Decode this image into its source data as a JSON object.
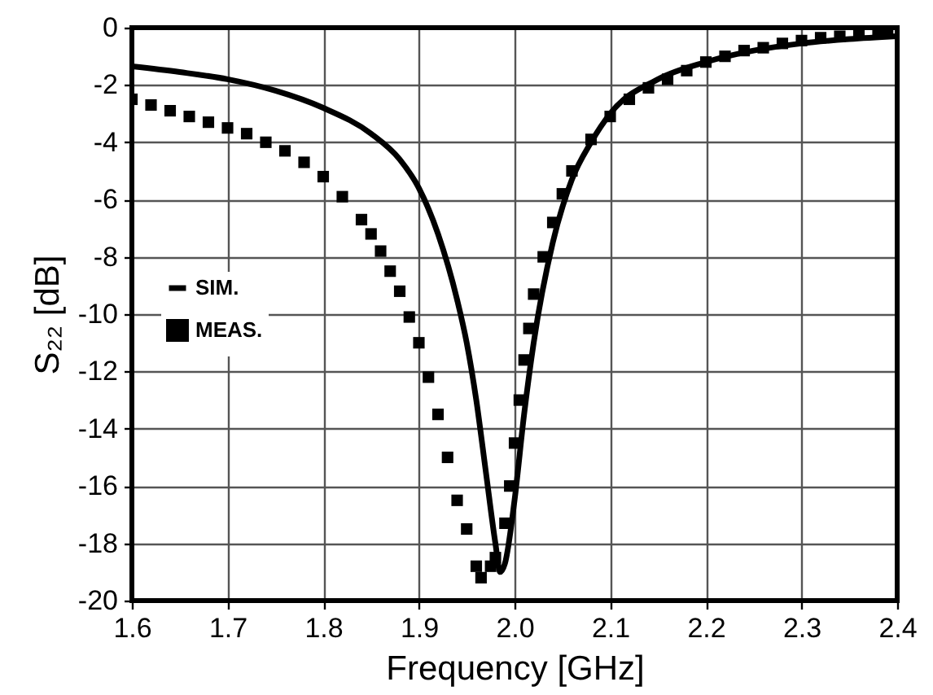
{
  "chart_data": {
    "type": "line",
    "xlabel": "Frequency [GHz]",
    "ylabel": "S₂₂ [dB]",
    "xlim": [
      1.6,
      2.4
    ],
    "xticks": [
      1.6,
      1.7,
      1.8,
      1.9,
      {
        "value": 2,
        "label": "2.0"
      },
      2.1,
      2.2,
      2.3,
      2.4
    ],
    "ylim": [
      -20,
      0
    ],
    "yticks": [
      -20,
      -18,
      -16,
      -14,
      -12,
      -10,
      -8,
      -6,
      -4,
      -2,
      0
    ],
    "grid": true,
    "legend": "left",
    "series": [
      {
        "name": "SIM.",
        "type": "line",
        "color": "#000000",
        "marker": "none",
        "line_style": "solid",
        "x": [
          1.6,
          1.65,
          1.7,
          1.75,
          1.8,
          1.85,
          1.88,
          1.9,
          1.92,
          1.94,
          1.95,
          1.96,
          1.97,
          1.98,
          1.985,
          1.99,
          2.0,
          2.01,
          2.02,
          2.04,
          2.06,
          2.08,
          2.1,
          2.15,
          2.2,
          2.25,
          2.3,
          2.35,
          2.4
        ],
        "values": [
          -1.35,
          -1.55,
          -1.8,
          -2.2,
          -2.8,
          -3.7,
          -4.6,
          -5.6,
          -7.2,
          -9.5,
          -11,
          -13,
          -15.5,
          -18,
          -19,
          -18.7,
          -16.5,
          -13.5,
          -11,
          -7.5,
          -5.3,
          -4,
          -3,
          -1.8,
          -1.2,
          -0.8,
          -0.55,
          -0.4,
          -0.3
        ]
      },
      {
        "name": "MEAS.",
        "type": "scatter",
        "color": "#000000",
        "marker": "square",
        "x": [
          1.6,
          1.62,
          1.64,
          1.66,
          1.68,
          1.7,
          1.72,
          1.74,
          1.76,
          1.78,
          1.8,
          1.82,
          1.84,
          1.85,
          1.86,
          1.87,
          1.88,
          1.89,
          1.9,
          1.91,
          1.92,
          1.93,
          1.94,
          1.95,
          1.96,
          1.965,
          1.975,
          1.98,
          1.99,
          1.995,
          2.0,
          2.005,
          2.01,
          2.015,
          2.02,
          2.03,
          2.04,
          2.05,
          2.06,
          2.08,
          2.1,
          2.12,
          2.14,
          2.16,
          2.18,
          2.2,
          2.22,
          2.24,
          2.26,
          2.28,
          2.3,
          2.32,
          2.34,
          2.36,
          2.38,
          2.39
        ],
        "values": [
          -2.5,
          -2.7,
          -2.9,
          -3.1,
          -3.3,
          -3.5,
          -3.7,
          -4.0,
          -4.3,
          -4.7,
          -5.2,
          -5.9,
          -6.7,
          -7.2,
          -7.8,
          -8.5,
          -9.2,
          -10.1,
          -11,
          -12.2,
          -13.5,
          -15,
          -16.5,
          -17.5,
          -18.8,
          -19.2,
          -18.8,
          -18.5,
          -17.3,
          -16,
          -14.5,
          -13,
          -11.6,
          -10.5,
          -9.3,
          -8,
          -6.8,
          -5.8,
          -5,
          -3.9,
          -3.1,
          -2.5,
          -2.1,
          -1.8,
          -1.5,
          -1.2,
          -1.0,
          -0.8,
          -0.7,
          -0.55,
          -0.45,
          -0.35,
          -0.3,
          -0.2,
          -0.15,
          -0.1
        ]
      }
    ]
  }
}
